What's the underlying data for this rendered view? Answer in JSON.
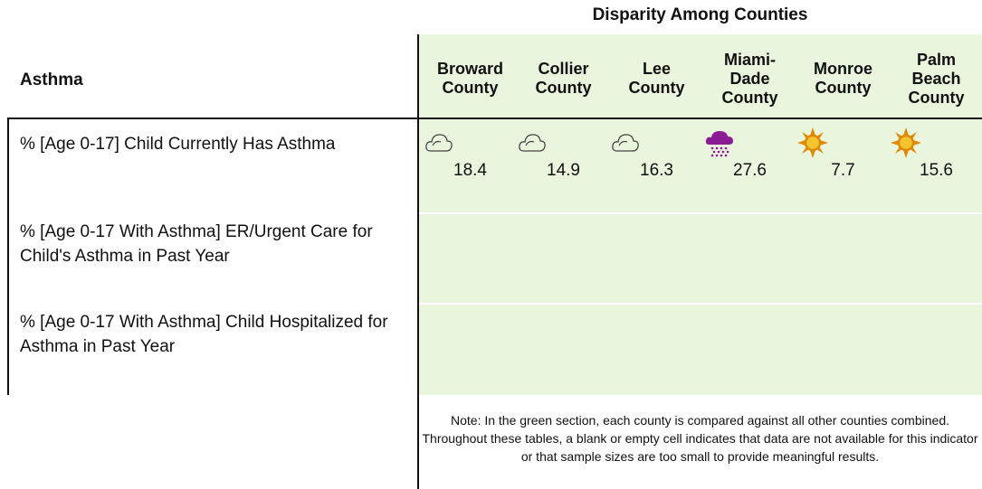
{
  "header": {
    "title": "Disparity Among Counties",
    "topic": "Asthma",
    "counties": [
      "Broward County",
      "Collier County",
      "Lee County",
      "Miami-Dade County",
      "Monroe County",
      "Palm Beach County"
    ]
  },
  "table": {
    "rows": [
      {
        "label": "% [Age 0-17] Child Currently Has Asthma",
        "values": [
          18.4,
          14.9,
          16.3,
          27.6,
          7.7,
          15.6
        ]
      },
      {
        "label": "% [Age 0-17 With Asthma] ER/Urgent Care for Child's Asthma in Past Year"
      },
      {
        "label": "% [Age 0-17 With Asthma] Child Hospitalized for Asthma in Past Year"
      }
    ]
  },
  "note": "Note: In the green section, each county is compared against all other counties combined. Throughout these tables, a blank or empty cell indicates that data are not available for this indicator or that sample sizes are too small to provide meaningful results."
}
